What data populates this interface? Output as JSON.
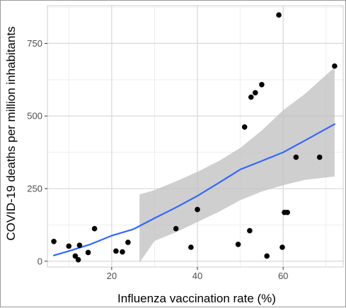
{
  "chart_data": {
    "type": "scatter",
    "title": "",
    "xlabel": "Influenza vaccination rate (%)",
    "ylabel": "COVID-19 deaths per million inhabitants",
    "xlim": [
      5,
      74
    ],
    "ylim": [
      -20,
      880
    ],
    "x_ticks": [
      20,
      40,
      60
    ],
    "y_ticks": [
      0,
      250,
      500,
      750
    ],
    "grid": true,
    "legend": "none",
    "colors": {
      "panel_background": "#ffffff",
      "grid_major": "#d9d9d9",
      "grid_minor": "#eeeeee",
      "points": "#000000",
      "trend_line": "#3366ff",
      "confidence_band": "#bfbfbf"
    },
    "series": [
      {
        "kind": "points",
        "x": [
          6.5,
          10,
          11.5,
          12.2,
          12.5,
          14.5,
          16,
          21,
          22.5,
          23.8,
          35,
          38.5,
          40,
          49.5,
          51,
          52.2,
          52.5,
          53.5,
          55,
          56.2,
          59,
          59.8,
          60.3,
          61,
          63,
          68.5,
          72
        ],
        "y": [
          68,
          52,
          18,
          5,
          55,
          30,
          112,
          35,
          32,
          65,
          112,
          48,
          178,
          58,
          462,
          105,
          565,
          580,
          608,
          18,
          848,
          48,
          168,
          168,
          358,
          358,
          672
        ]
      },
      {
        "kind": "smooth",
        "x": [
          6.5,
          10,
          15,
          20,
          25,
          30,
          35,
          40,
          45,
          50,
          55,
          60,
          65,
          72
        ],
        "y": [
          20,
          35,
          58,
          88,
          110,
          148,
          185,
          225,
          270,
          316,
          345,
          375,
          415,
          472
        ],
        "ci_x": [
          26.5,
          30,
          35,
          40,
          45,
          50,
          55,
          60,
          65,
          72
        ],
        "ci_upper": [
          230,
          245,
          275,
          308,
          345,
          390,
          450,
          520,
          575,
          668
        ],
        "ci_lower": [
          -5,
          70,
          100,
          135,
          170,
          210,
          240,
          262,
          280,
          292
        ]
      }
    ]
  }
}
